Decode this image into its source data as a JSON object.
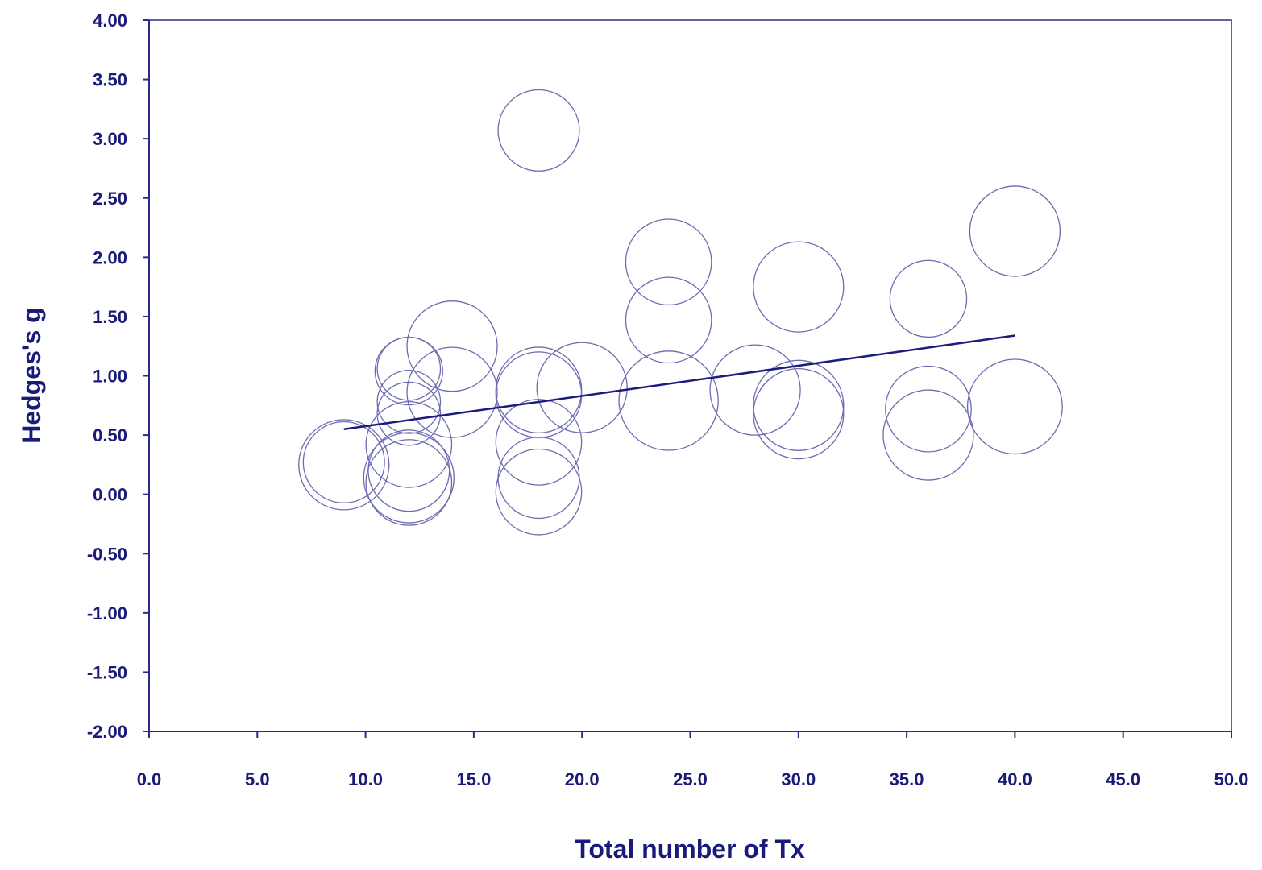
{
  "chart_data": {
    "type": "scatter",
    "title": "",
    "xlabel": "Total number of Tx",
    "ylabel": "Hedges's g",
    "xlim": [
      0,
      50
    ],
    "ylim": [
      -2,
      4
    ],
    "x_ticks": [
      "0.0",
      "5.0",
      "10.0",
      "15.0",
      "20.0",
      "25.0",
      "30.0",
      "35.0",
      "40.0",
      "45.0",
      "50.0"
    ],
    "y_ticks": [
      "4.00",
      "3.50",
      "3.00",
      "2.50",
      "2.00",
      "1.50",
      "1.00",
      "0.50",
      "0.00",
      "-0.50",
      "-1.00",
      "-1.50",
      "-2.00"
    ],
    "grid": false,
    "legend": "none",
    "marker_color": "#6b6bb0",
    "line_color": "#1c1c80",
    "points": [
      {
        "x": 9,
        "y": 0.27,
        "w": 0.9
      },
      {
        "x": 9,
        "y": 0.25,
        "w": 1.0
      },
      {
        "x": 12,
        "y": 1.06,
        "w": 0.7
      },
      {
        "x": 12,
        "y": 1.04,
        "w": 0.75
      },
      {
        "x": 12,
        "y": 0.78,
        "w": 0.7
      },
      {
        "x": 12,
        "y": 0.68,
        "w": 0.7
      },
      {
        "x": 12,
        "y": 0.42,
        "w": 0.95
      },
      {
        "x": 12,
        "y": 0.2,
        "w": 0.9
      },
      {
        "x": 12,
        "y": 0.14,
        "w": 1.0
      },
      {
        "x": 12,
        "y": 0.1,
        "w": 0.95
      },
      {
        "x": 14,
        "y": 1.25,
        "w": 1.0
      },
      {
        "x": 14,
        "y": 0.86,
        "w": 1.0
      },
      {
        "x": 18,
        "y": 3.07,
        "w": 0.9
      },
      {
        "x": 18,
        "y": 0.88,
        "w": 0.95
      },
      {
        "x": 18,
        "y": 0.84,
        "w": 0.95
      },
      {
        "x": 18,
        "y": 0.44,
        "w": 0.95
      },
      {
        "x": 18,
        "y": 0.14,
        "w": 0.9
      },
      {
        "x": 18,
        "y": 0.02,
        "w": 0.95
      },
      {
        "x": 20,
        "y": 0.9,
        "w": 1.0
      },
      {
        "x": 24,
        "y": 1.96,
        "w": 0.95
      },
      {
        "x": 24,
        "y": 1.47,
        "w": 0.95
      },
      {
        "x": 24,
        "y": 0.79,
        "w": 1.1
      },
      {
        "x": 28,
        "y": 0.88,
        "w": 1.0
      },
      {
        "x": 30,
        "y": 1.75,
        "w": 1.0
      },
      {
        "x": 30,
        "y": 0.75,
        "w": 1.0
      },
      {
        "x": 30,
        "y": 0.68,
        "w": 1.0
      },
      {
        "x": 36,
        "y": 1.65,
        "w": 0.85
      },
      {
        "x": 36,
        "y": 0.72,
        "w": 0.95
      },
      {
        "x": 36,
        "y": 0.5,
        "w": 1.0
      },
      {
        "x": 40,
        "y": 2.22,
        "w": 1.0
      },
      {
        "x": 40,
        "y": 0.74,
        "w": 1.05
      }
    ],
    "regression": {
      "x": [
        9,
        40
      ],
      "y": [
        0.55,
        1.34
      ]
    }
  }
}
